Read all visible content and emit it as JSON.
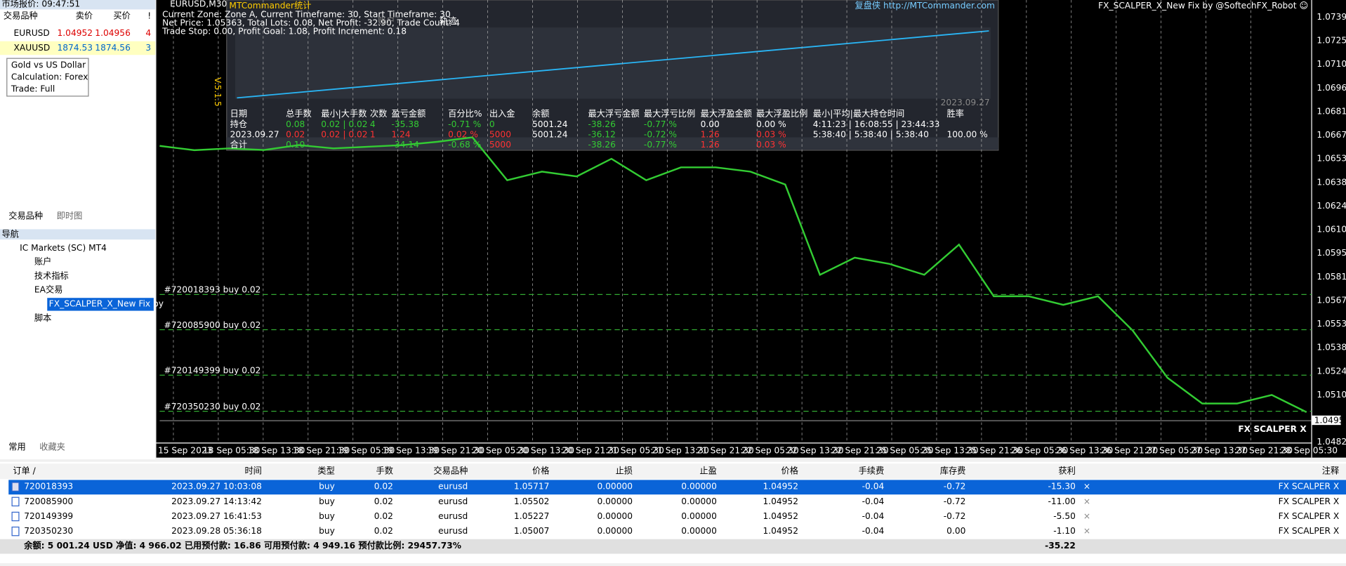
{
  "market_watch": {
    "title": "市场报价: 09:47:51",
    "headers": [
      "交易品种",
      "卖价",
      "买价",
      "!"
    ],
    "rows": [
      [
        "EURUSD",
        "1.04952",
        "1.04956",
        "4"
      ],
      [
        "XAUUSD",
        "1874.53",
        "1874.56",
        "3"
      ]
    ],
    "tooltip": [
      "Gold vs US Dollar",
      "Calculation: Forex",
      "Trade: Full"
    ],
    "tabs": [
      "交易品种",
      "即时图"
    ]
  },
  "navigator": {
    "title": "导航",
    "items": [
      "IC Markets (SC) MT4",
      "账户",
      "技术指标",
      "EA交易",
      "FX_SCALPER_X_New Fix by",
      "脚本"
    ],
    "tabs": [
      "常用",
      "收藏夹"
    ]
  },
  "chart": {
    "symbol": "EURUSD,M30",
    "robot": "FX_SCALPER_X_New Fix by @SoftechFX_Robot ☺",
    "watermark": "FX SCALPER X",
    "current_price": "1.04952",
    "price_ylim": [
      1.0482,
      1.07395
    ],
    "closes": [
      1.06615,
      1.06589,
      1.066,
      1.0659,
      1.0662,
      1.066,
      1.0661,
      1.0662,
      1.0664,
      1.06667,
      1.06407,
      1.06459,
      1.0643,
      1.06537,
      1.06407,
      1.06485,
      1.06485,
      1.06459,
      1.06381,
      1.05834,
      1.05938,
      1.059,
      1.05834,
      1.06017,
      1.05704,
      1.05704,
      1.05652,
      1.05704,
      1.05496,
      1.0521,
      1.05054,
      1.05054,
      1.05106,
      1.05002
    ],
    "axis_labels": [
      "1.07395",
      "1.07250",
      "1.07105",
      "1.06960",
      "1.06815",
      "1.06675",
      "1.06530",
      "1.06385",
      "1.06240",
      "1.06100",
      "1.05955",
      "1.05810",
      "1.05670",
      "1.05530",
      "1.05385",
      "1.05240",
      "1.05100",
      "1.04820"
    ],
    "time_labels": [
      "15 Sep 2023",
      "18 Sep 05:30",
      "18 Sep 13:30",
      "18 Sep 21:30",
      "19 Sep 05:30",
      "19 Sep 13:30",
      "19 Sep 21:30",
      "20 Sep 05:30",
      "20 Sep 13:30",
      "20 Sep 21:30",
      "21 Sep 05:30",
      "21 Sep 13:30",
      "21 Sep 21:30",
      "22 Sep 05:30",
      "22 Sep 13:30",
      "22 Sep 21:30",
      "25 Sep 05:30",
      "25 Sep 13:30",
      "25 Sep 21:30",
      "26 Sep 05:30",
      "26 Sep 13:30",
      "26 Sep 21:30",
      "27 Sep 05:30",
      "27 Sep 13:30",
      "27 Sep 21:30",
      "28 Sep 05:30"
    ],
    "order_lines": [
      "#720018393 buy 0.02",
      "#720085900 buy 0.02",
      "#720149399 buy 0.02",
      "#720350230 buy 0.02"
    ],
    "overlay": {
      "title": "MTCommander统计",
      "link": "复盘侠 http://MTCommander.com",
      "version": "V.5.1.5",
      "date": "2023.09.27",
      "tabs": [
        "账户",
        "轨迹"
      ],
      "info": [
        "Current Zone: Zone A, Current Timeframe: 30, Start Timeframe: 30",
        "Net Price: 1.05363, Total Lots: 0.08, Net Profit: -32.90, Trade Count: 4",
        "Trade Stop: 0.00, Profit Goal: 1.08, Profit Increment: 0.18"
      ],
      "headers": [
        "日期",
        "总手数",
        "最小|大手数",
        "次数",
        "盈亏金额",
        "百分比%",
        "出入金",
        "余额",
        "最大浮亏金额",
        "最大浮亏比例",
        "最大浮盈金额",
        "最大浮盈比例",
        "最小|平均|最大持仓时间",
        "胜率"
      ],
      "rows": [
        [
          "持仓",
          "0.08",
          "0.02 | 0.02",
          "4",
          "-35.38",
          "-0.71 %",
          "0",
          "5001.24",
          "-38.26",
          "-0.77 %",
          "0.00",
          "0.00 %",
          "4:11:23 | 16:08:55 | 23:44:33",
          null
        ],
        [
          "2023.09.27",
          "0.02",
          "0.02 | 0.02",
          "1",
          "1.24",
          "0.02 %",
          "5000",
          "5001.24",
          "-36.12",
          "-0.72 %",
          "1.26",
          "0.03 %",
          "5:38:40 | 5:38:40 | 5:38:40",
          "100.00 %"
        ],
        [
          "合计",
          "0.10",
          null,
          null,
          "-34.14",
          "-0.68 %",
          "5000",
          null,
          "-38.26",
          "-0.77 %",
          "1.26",
          "0.03 %",
          null,
          null
        ]
      ]
    }
  },
  "terminal": {
    "headers": [
      "订单 /",
      "时间",
      "类型",
      "手数",
      "交易品种",
      "价格",
      "止损",
      "止盈",
      "价格",
      "手续费",
      "库存费",
      "获利",
      "注释"
    ],
    "rows": [
      [
        "720018393",
        "2023.09.27 10:03:08",
        "buy",
        "0.02",
        "eurusd",
        "1.05717",
        "0.00000",
        "0.00000",
        "1.04952",
        "-0.04",
        "-0.72",
        "-15.30",
        "FX SCALPER X"
      ],
      [
        "720085900",
        "2023.09.27 14:13:42",
        "buy",
        "0.02",
        "eurusd",
        "1.05502",
        "0.00000",
        "0.00000",
        "1.04952",
        "-0.04",
        "-0.72",
        "-11.00",
        "FX SCALPER X"
      ],
      [
        "720149399",
        "2023.09.27 16:41:53",
        "buy",
        "0.02",
        "eurusd",
        "1.05227",
        "0.00000",
        "0.00000",
        "1.04952",
        "-0.04",
        "-0.72",
        "-5.50",
        "FX SCALPER X"
      ],
      [
        "720350230",
        "2023.09.28 05:36:18",
        "buy",
        "0.02",
        "eurusd",
        "1.05007",
        "0.00000",
        "0.00000",
        "1.04952",
        "-0.04",
        "0.00",
        "-1.10",
        "FX SCALPER X"
      ]
    ],
    "summary": "余额: 5 001.24 USD  净值: 4 966.02  已用预付款: 16.86  可用预付款: 4 949.16  预付款比例: 29457.73%",
    "total": "-35.22"
  }
}
